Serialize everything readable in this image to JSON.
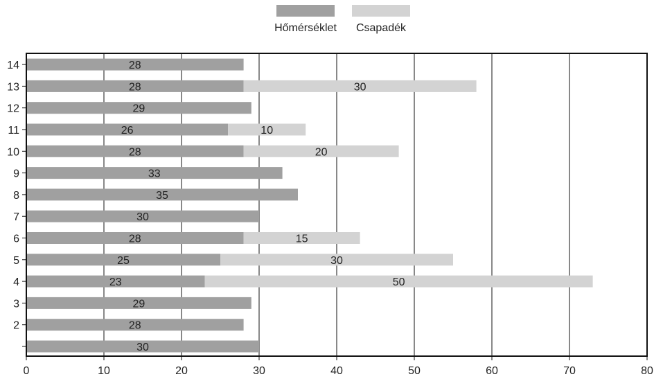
{
  "chart_data": {
    "type": "bar",
    "orientation": "horizontal",
    "stacked": true,
    "categories": [
      "",
      "2",
      "3",
      "4",
      "5",
      "6",
      "7",
      "8",
      "9",
      "10",
      "11",
      "12",
      "13",
      "14"
    ],
    "series": [
      {
        "name": "Hőmérséklet",
        "color": "#a0a0a0",
        "values": [
          30,
          28,
          29,
          23,
          25,
          28,
          30,
          35,
          33,
          28,
          26,
          29,
          28,
          28
        ],
        "labels": [
          "30",
          "28",
          "29",
          "23",
          "25",
          "28",
          "30",
          "35",
          "33",
          "28",
          "26",
          "29",
          "28",
          "28"
        ]
      },
      {
        "name": "Csapadék",
        "color": "#d3d3d3",
        "values": [
          0,
          0,
          0,
          50,
          30,
          15,
          0,
          0,
          0,
          20,
          10,
          0,
          30,
          0
        ],
        "labels": [
          "",
          "",
          "",
          "50",
          "30",
          "15",
          "",
          "",
          "",
          "20",
          "10",
          "",
          "30",
          ""
        ]
      }
    ],
    "xlim": [
      0,
      80
    ],
    "xticks": [
      "0",
      "10",
      "20",
      "30",
      "40",
      "50",
      "60",
      "70",
      "80"
    ],
    "grid": true,
    "legend_position": "top-center"
  }
}
